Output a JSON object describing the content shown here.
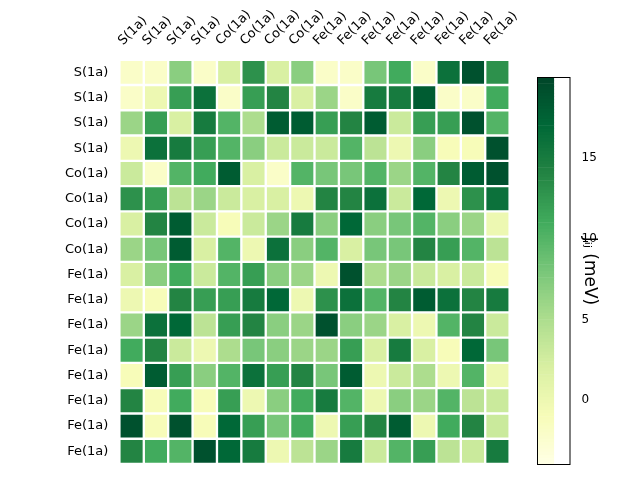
{
  "chart_data": {
    "type": "heatmap",
    "color": "YlGn",
    "x_labels": [
      "S(1a)",
      "S(1a)",
      "S(1a)",
      "S(1a)",
      "Co(1a)",
      "Co(1a)",
      "Co(1a)",
      "Co(1a)",
      "Fe(1a)",
      "Fe(1a)",
      "Fe(1a)",
      "Fe(1a)",
      "Fe(1a)",
      "Fe(1a)",
      "Fe(1a)",
      "Fe(1a)"
    ],
    "y_labels": [
      "S(1a)",
      "S(1a)",
      "S(1a)",
      "S(1a)",
      "Co(1a)",
      "Co(1a)",
      "Co(1a)",
      "Co(1a)",
      "Fe(1a)",
      "Fe(1a)",
      "Fe(1a)",
      "Fe(1a)",
      "Fe(1a)",
      "Fe(1a)",
      "Fe(1a)",
      "Fe(1a)"
    ],
    "values": [
      [
        -2,
        -2,
        7,
        -2,
        2,
        13,
        2,
        7,
        -2,
        -2,
        8,
        11,
        -2,
        16,
        19,
        13
      ],
      [
        -2,
        0,
        12,
        16,
        -2,
        12,
        14,
        2,
        6,
        -2,
        15,
        15,
        18,
        -2,
        -2,
        11
      ],
      [
        6,
        12,
        2,
        15,
        10,
        5,
        18,
        18,
        12,
        14,
        18,
        3,
        12,
        12,
        19,
        10
      ],
      [
        0,
        16,
        15,
        12,
        10,
        7,
        3,
        3,
        3,
        10,
        4,
        0,
        7,
        -1,
        -1,
        19
      ],
      [
        3,
        -2,
        10,
        11,
        18,
        2,
        -2,
        10,
        8,
        8,
        10,
        6,
        10,
        14,
        18,
        19
      ],
      [
        13,
        12,
        4,
        6,
        3,
        2,
        2,
        0,
        14,
        14,
        16,
        3,
        17,
        0,
        13,
        16
      ],
      [
        2,
        14,
        18,
        3,
        -1,
        3,
        6,
        15,
        7,
        17,
        7,
        8,
        10,
        7,
        6,
        0
      ],
      [
        6,
        8,
        18,
        2,
        10,
        0,
        16,
        7,
        10,
        2,
        8,
        8,
        14,
        12,
        10,
        4
      ],
      [
        2,
        7,
        11,
        3,
        10,
        12,
        7,
        6,
        0,
        19,
        5,
        6,
        3,
        2,
        3,
        -1
      ],
      [
        0,
        -1,
        14,
        12,
        12,
        15,
        17,
        0,
        13,
        16,
        10,
        14,
        18,
        16,
        14,
        15
      ],
      [
        6,
        16,
        17,
        4,
        12,
        14,
        7,
        6,
        19,
        7,
        6,
        2,
        0,
        10,
        14,
        3
      ],
      [
        11,
        14,
        3,
        0,
        5,
        8,
        7,
        6,
        6,
        12,
        2,
        15,
        2,
        -1,
        17,
        8
      ],
      [
        -1,
        18,
        12,
        7,
        10,
        16,
        12,
        14,
        8,
        18,
        0,
        3,
        5,
        0,
        10,
        0
      ],
      [
        14,
        -1,
        11,
        -1,
        12,
        0,
        7,
        11,
        15,
        10,
        0,
        7,
        6,
        10,
        4,
        3
      ],
      [
        19,
        -1,
        19,
        -1,
        17,
        12,
        8,
        11,
        0,
        12,
        14,
        18,
        0,
        11,
        14,
        3
      ],
      [
        14,
        11,
        10,
        19,
        17,
        15,
        0,
        4,
        6,
        15,
        3,
        10,
        12,
        4,
        3,
        15
      ]
    ],
    "colorbar": {
      "label": "Jᵢⱼ (meV)",
      "range": [
        -4,
        20
      ],
      "ticks": [
        0,
        5,
        10,
        15
      ]
    }
  }
}
